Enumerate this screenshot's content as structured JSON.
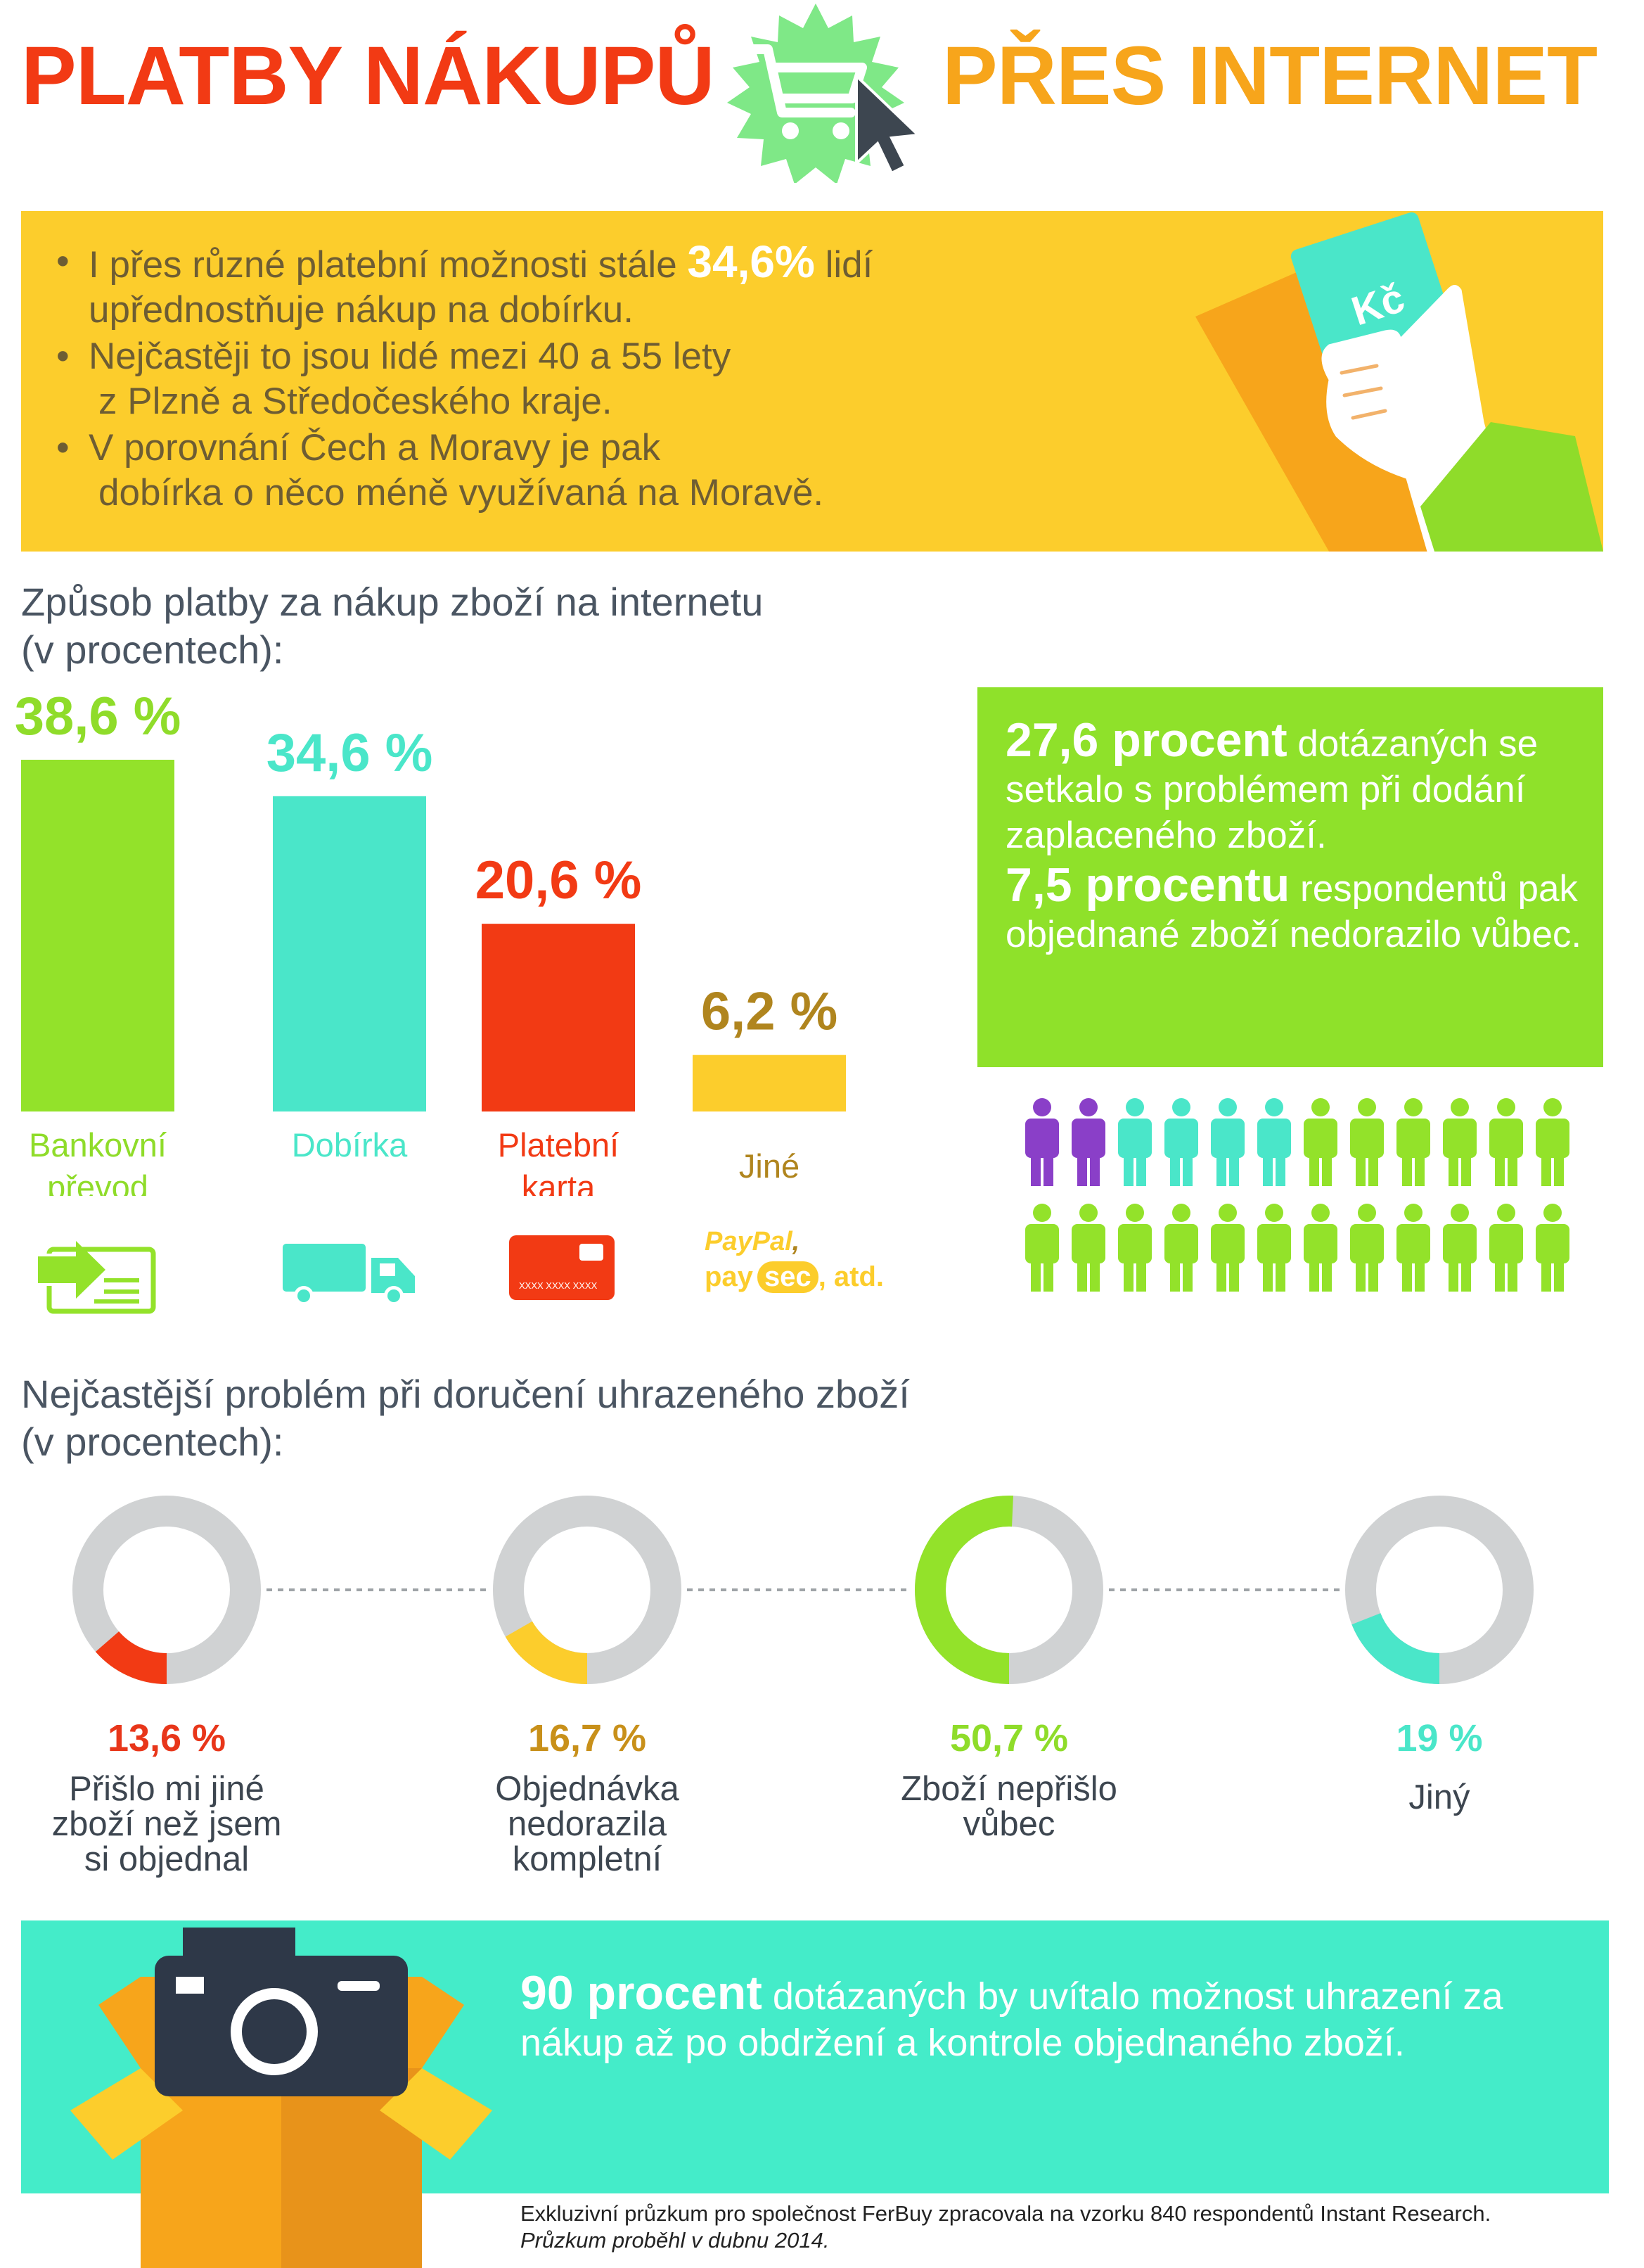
{
  "header": {
    "title_left": "PLATBY NÁKUPŮ",
    "title_right": "PŘES INTERNET",
    "badge_icon": "shopping-cart-cursor-icon"
  },
  "intro": {
    "bullets": [
      {
        "pre": "I přes různé platební možnosti stále ",
        "highlight": "34,6%",
        "post": " lidí",
        "line2": "upřednostňuje nákup na dobírku."
      },
      {
        "pre": "Nejčastěji to jsou lidé mezi 40 a 55 lety",
        "highlight": "",
        "post": "",
        "line2": " z Plzně a Středočeského kraje."
      },
      {
        "pre": "V porovnání Čech a Moravy je pak",
        "highlight": "",
        "post": "",
        "line2": " dobírka o něco méně využívaná na Moravě."
      }
    ],
    "bullet_char": "•",
    "hand_note_text": "Kč"
  },
  "payment_section": {
    "heading_line1": "Způsob platby za nákup zboží na internetu",
    "heading_line2": "(v procentech):"
  },
  "chart_data": [
    {
      "type": "bar",
      "categories": [
        "Bankovní převod",
        "Dobírka",
        "Platební karta",
        "Jiné"
      ],
      "values": [
        38.6,
        34.6,
        20.6,
        6.2
      ],
      "value_labels": [
        "38,6 %",
        "34,6 %",
        "20,6 %",
        "6,2 %"
      ],
      "label_lines": [
        [
          "Bankovní",
          "převod"
        ],
        [
          "Dobírka"
        ],
        [
          "Platební",
          "karta"
        ],
        [
          "Jiné"
        ]
      ],
      "colors": [
        "#93e22a",
        "#4ae6c9",
        "#f23a14",
        "#fccd2c"
      ],
      "value_colors": [
        "#8fdc2a",
        "#4ae6c9",
        "#f23a14",
        "#b0851e"
      ],
      "icons": [
        "bank-transfer-icon",
        "delivery-truck-icon",
        "credit-card-icon",
        "paypal-paysec-icon"
      ],
      "card_number_text": "XXXX XXXX XXXX",
      "other_methods_text": {
        "paypal": "PayPal",
        "comma": ",",
        "pay": "pay",
        "sec": "sec",
        "etc": ", atd."
      }
    },
    {
      "type": "pie",
      "categories": [
        "Přišlo mi jiné zboží než jsem si objednal",
        "Objednávka nedorazila kompletní",
        "Zboží nepřišlo vůbec",
        "Jiný"
      ],
      "values": [
        13.6,
        16.7,
        50.7,
        19
      ],
      "value_labels": [
        "13,6 %",
        "16,7 %",
        "50,7 %",
        "19 %"
      ],
      "label_lines": [
        [
          "Přišlo mi jiné",
          "zboží než jsem",
          "si objednal"
        ],
        [
          "Objednávka",
          "nedorazila",
          "kompletní"
        ],
        [
          "Zboží nepřišlo",
          "vůbec"
        ],
        [
          "Jiný"
        ]
      ],
      "colors": [
        "#f23a14",
        "#fccd2c",
        "#93e22a",
        "#4ae6c9"
      ],
      "value_colors": [
        "#e8361a",
        "#c8901a",
        "#8fdc2a",
        "#4ae6c9"
      ],
      "track_color": "#d0d2d3"
    }
  ],
  "problem_stats": {
    "line1_strong": "27,6 procent",
    "line1_rest": " dotázaných se setkalo s problémem při dodání zaplaceného zboží.",
    "line2_strong": "7,5 procentu",
    "line2_rest": " respondentů pak objednané zboží nedorazilo vůbec.",
    "people_total": 24,
    "people_purple": 2,
    "people_teal": 4,
    "colors": {
      "purple": "#8a3fc8",
      "teal": "#4ae6c9",
      "green": "#93e22a"
    }
  },
  "problem_section": {
    "heading_line1": "Nejčastější problém při doručení uhrazeného zboží",
    "heading_line2": "(v procentech):"
  },
  "conclusion": {
    "strong": "90 procent",
    "rest": " dotázaných by uvítalo možnost uhrazení za nákup až po obdržení a kontrole objednaného zboží."
  },
  "footer": {
    "line1": "Exkluzivní průzkum pro společnost FerBuy zpracovala na vzorku 840 respondentů Instant Research.",
    "line2": "Průzkum proběhl v dubnu 2014."
  }
}
